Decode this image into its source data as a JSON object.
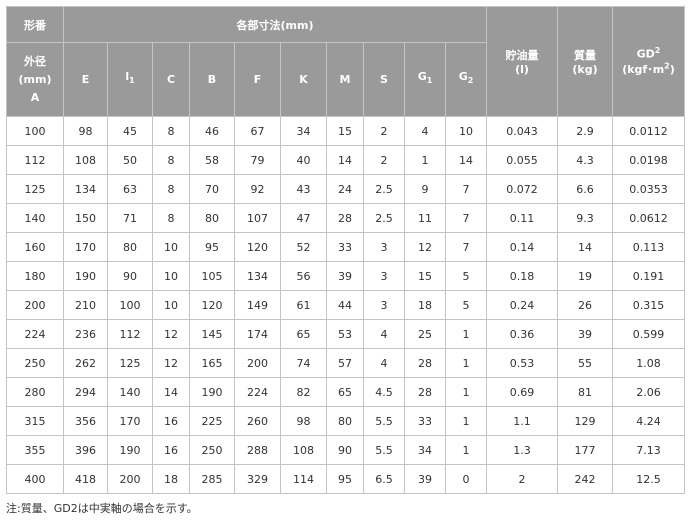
{
  "header": {
    "model": "形番",
    "dims": "各部寸法(mm)",
    "oil": "貯油量",
    "oil_unit": "(l)",
    "mass": "質量",
    "mass_unit": "(kg)",
    "gd": "GD",
    "gd_sup": "2",
    "gd_unit": "(kgf･m",
    "gd_unit_sup": "2",
    "gd_unit_close": ")",
    "od": "外径",
    "od_unit": "(mm)",
    "od_a": "A",
    "cols": [
      {
        "l": "E",
        "s": ""
      },
      {
        "l": "l",
        "s": "1"
      },
      {
        "l": "C",
        "s": ""
      },
      {
        "l": "B",
        "s": ""
      },
      {
        "l": "F",
        "s": ""
      },
      {
        "l": "K",
        "s": ""
      },
      {
        "l": "M",
        "s": ""
      },
      {
        "l": "S",
        "s": ""
      },
      {
        "l": "G",
        "s": "1"
      },
      {
        "l": "G",
        "s": "2"
      }
    ]
  },
  "rows": [
    [
      "100",
      "98",
      "45",
      "8",
      "46",
      "67",
      "34",
      "15",
      "2",
      "4",
      "10",
      "0.043",
      "2.9",
      "0.0112"
    ],
    [
      "112",
      "108",
      "50",
      "8",
      "58",
      "79",
      "40",
      "14",
      "2",
      "1",
      "14",
      "0.055",
      "4.3",
      "0.0198"
    ],
    [
      "125",
      "134",
      "63",
      "8",
      "70",
      "92",
      "43",
      "24",
      "2.5",
      "9",
      "7",
      "0.072",
      "6.6",
      "0.0353"
    ],
    [
      "140",
      "150",
      "71",
      "8",
      "80",
      "107",
      "47",
      "28",
      "2.5",
      "11",
      "7",
      "0.11",
      "9.3",
      "0.0612"
    ],
    [
      "160",
      "170",
      "80",
      "10",
      "95",
      "120",
      "52",
      "33",
      "3",
      "12",
      "7",
      "0.14",
      "14",
      "0.113"
    ],
    [
      "180",
      "190",
      "90",
      "10",
      "105",
      "134",
      "56",
      "39",
      "3",
      "15",
      "5",
      "0.18",
      "19",
      "0.191"
    ],
    [
      "200",
      "210",
      "100",
      "10",
      "120",
      "149",
      "61",
      "44",
      "3",
      "18",
      "5",
      "0.24",
      "26",
      "0.315"
    ],
    [
      "224",
      "236",
      "112",
      "12",
      "145",
      "174",
      "65",
      "53",
      "4",
      "25",
      "1",
      "0.36",
      "39",
      "0.599"
    ],
    [
      "250",
      "262",
      "125",
      "12",
      "165",
      "200",
      "74",
      "57",
      "4",
      "28",
      "1",
      "0.53",
      "55",
      "1.08"
    ],
    [
      "280",
      "294",
      "140",
      "14",
      "190",
      "224",
      "82",
      "65",
      "4.5",
      "28",
      "1",
      "0.69",
      "81",
      "2.06"
    ],
    [
      "315",
      "356",
      "170",
      "16",
      "225",
      "260",
      "98",
      "80",
      "5.5",
      "33",
      "1",
      "1.1",
      "129",
      "4.24"
    ],
    [
      "355",
      "396",
      "190",
      "16",
      "250",
      "288",
      "108",
      "90",
      "5.5",
      "34",
      "1",
      "1.3",
      "177",
      "7.13"
    ],
    [
      "400",
      "418",
      "200",
      "18",
      "285",
      "329",
      "114",
      "95",
      "6.5",
      "39",
      "0",
      "2",
      "242",
      "12.5"
    ]
  ],
  "note": "注:質量、GD2は中実軸の場合を示す。"
}
